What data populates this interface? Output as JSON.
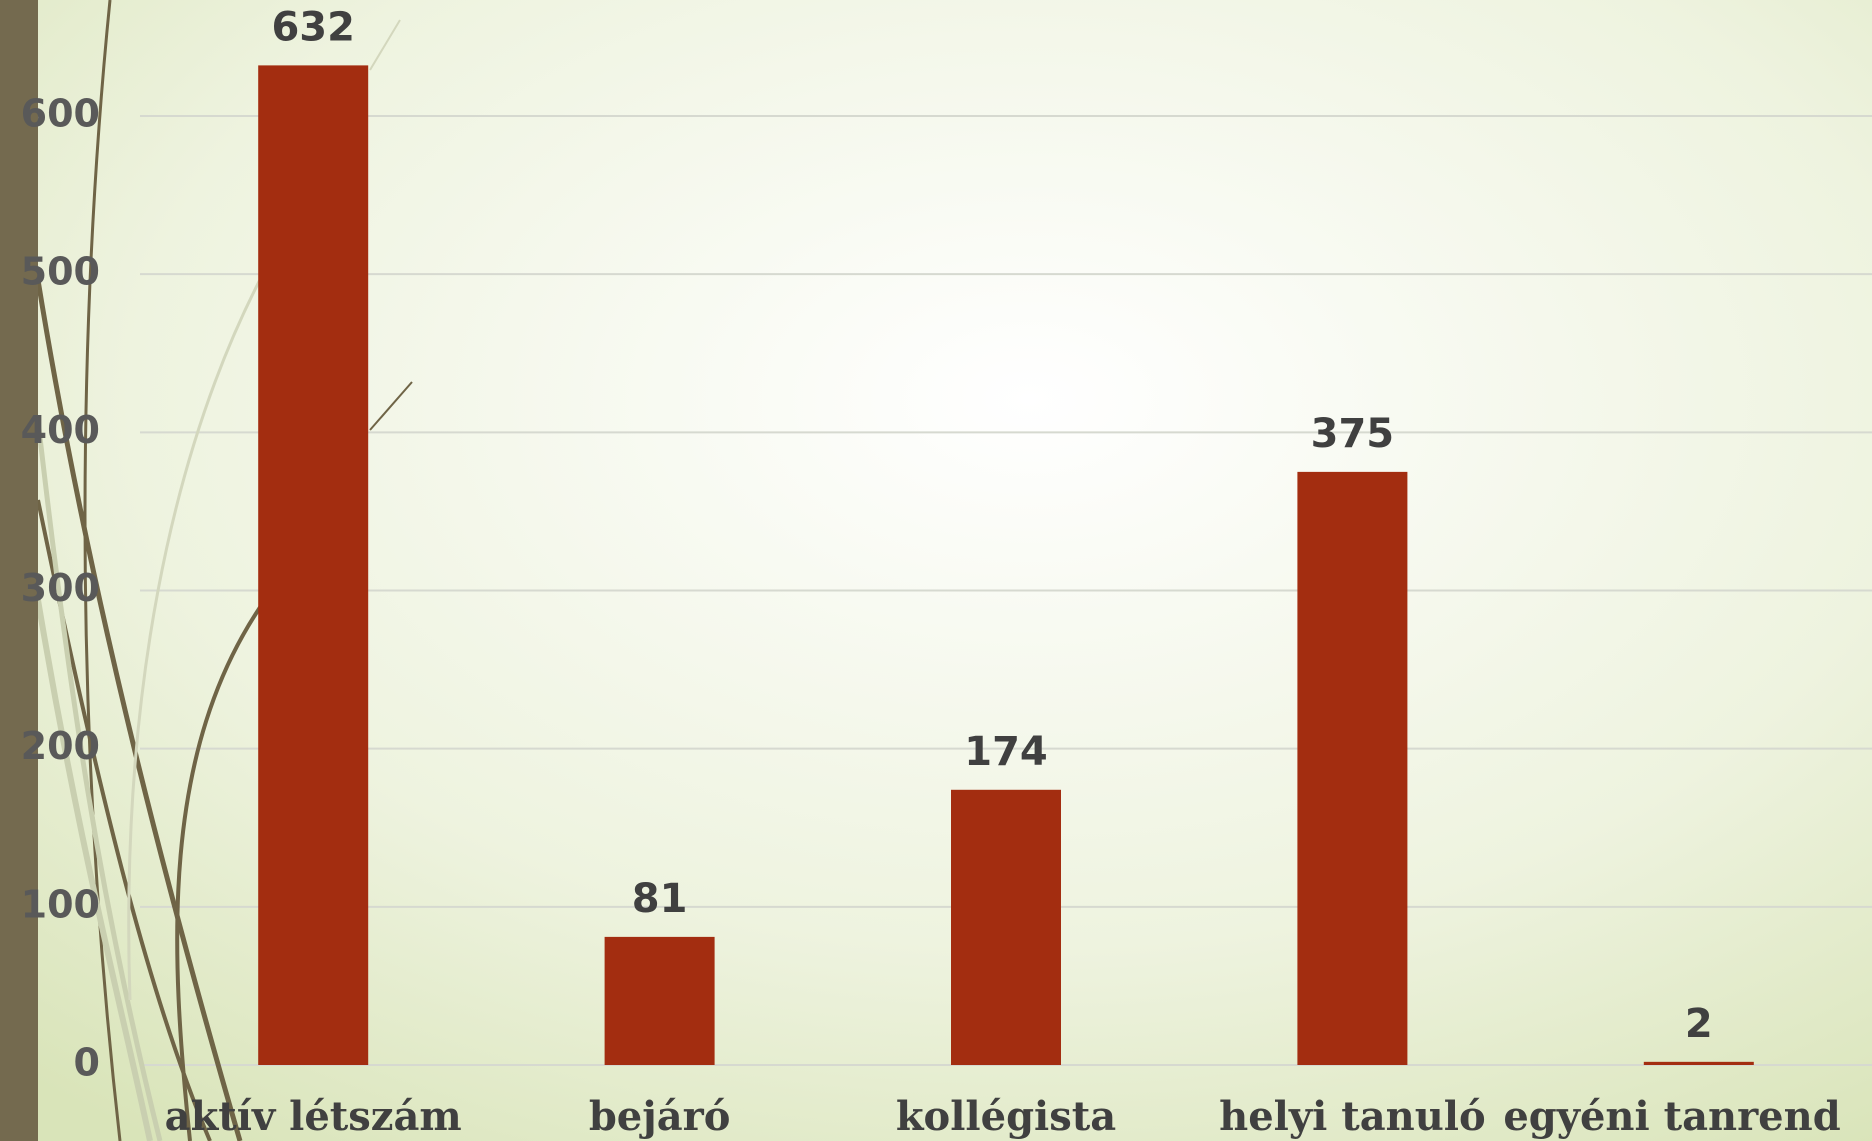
{
  "chart_data": {
    "type": "bar",
    "categories": [
      "aktív létszám",
      "bejáró",
      "kollégista",
      "helyi tanuló",
      "egyéni tanrend"
    ],
    "values": [
      632,
      81,
      174,
      375,
      2
    ],
    "color": "#a32d10",
    "ylim": [
      0,
      700
    ],
    "yticks": [
      0,
      100,
      200,
      300,
      400,
      500,
      600
    ],
    "grid": true
  }
}
